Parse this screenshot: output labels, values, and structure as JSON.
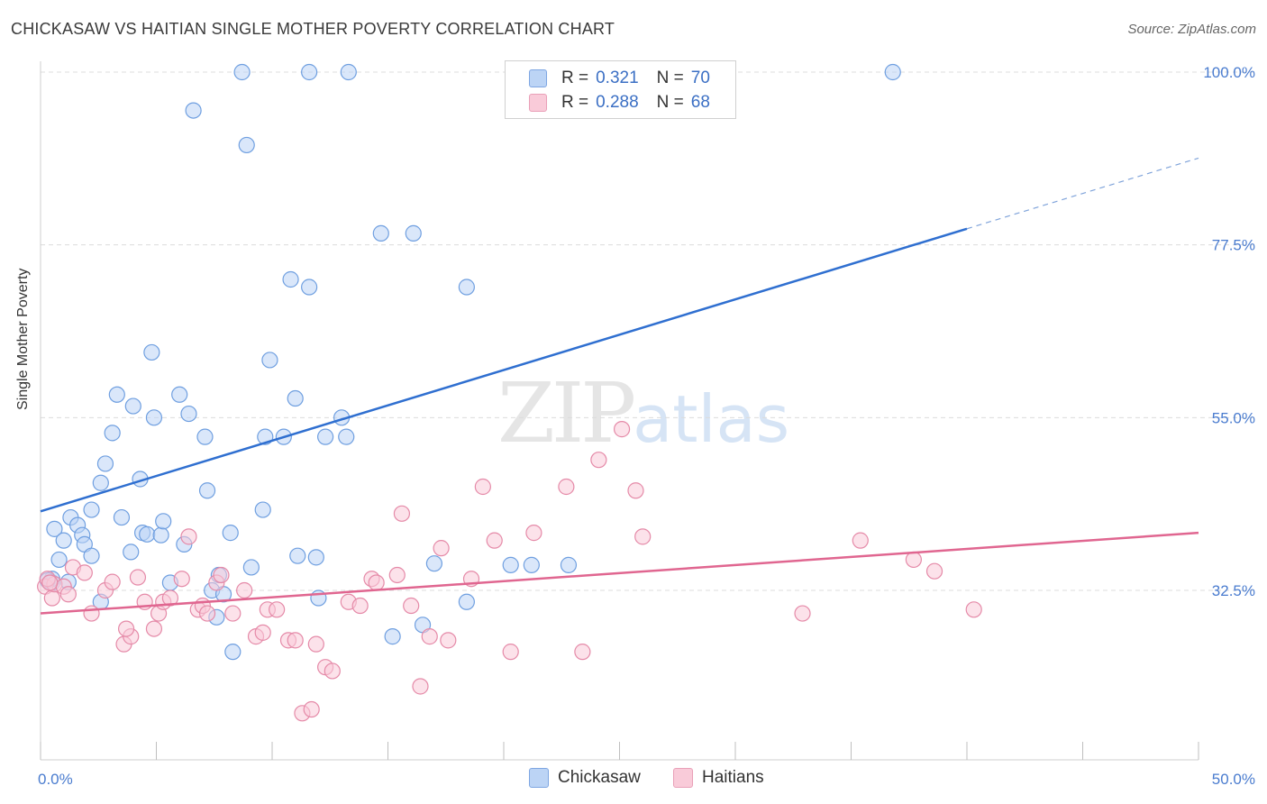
{
  "header": {
    "title": "CHICKASAW VS HAITIAN SINGLE MOTHER POVERTY CORRELATION CHART",
    "source": "Source: ZipAtlas.com"
  },
  "watermark": {
    "zip": "ZIP",
    "atlas": "atlas"
  },
  "legend": {
    "r_label": "R =",
    "n_label": "N =",
    "rows": [
      {
        "r": "0.321",
        "n": "70",
        "color": "#a9c8f0"
      },
      {
        "r": "0.288",
        "n": "68",
        "color": "#f6b8cc"
      }
    ]
  },
  "chart_data": {
    "type": "scatter",
    "title": "CHICKASAW VS HAITIAN SINGLE MOTHER POVERTY CORRELATION CHART",
    "xlabel": "",
    "ylabel": "Single Mother Poverty",
    "xlim": [
      0,
      50
    ],
    "ylim": [
      14,
      102
    ],
    "x_tick_labels": [
      "0.0%",
      "50.0%"
    ],
    "y_ticks": [
      32.5,
      55.0,
      77.5,
      100.0
    ],
    "y_tick_labels": [
      "32.5%",
      "55.0%",
      "77.5%",
      "100.0%"
    ],
    "grid": "horizontal dashed",
    "legend_position": "top-center",
    "series": [
      {
        "name": "Chickasaw",
        "color": "#6f9fe0",
        "fill": "#bcd4f5",
        "trend": {
          "x0": 0,
          "y0": 42.8,
          "x1": 40,
          "y1": 79.6,
          "dash_to_x": 50,
          "dash_to_y": 88.8
        },
        "points": [
          [
            0.5,
            33.5
          ],
          [
            0.8,
            36.5
          ],
          [
            0.6,
            40.5
          ],
          [
            1.0,
            39.0
          ],
          [
            1.2,
            33.6
          ],
          [
            1.3,
            42.0
          ],
          [
            1.6,
            41.0
          ],
          [
            1.8,
            39.7
          ],
          [
            1.9,
            38.5
          ],
          [
            2.2,
            37.0
          ],
          [
            2.2,
            43.0
          ],
          [
            2.6,
            46.5
          ],
          [
            2.6,
            31.0
          ],
          [
            2.8,
            49.0
          ],
          [
            3.1,
            53.0
          ],
          [
            3.3,
            58.0
          ],
          [
            3.5,
            42.0
          ],
          [
            3.9,
            37.5
          ],
          [
            4.0,
            56.5
          ],
          [
            4.3,
            47.0
          ],
          [
            4.4,
            40.0
          ],
          [
            4.6,
            39.8
          ],
          [
            4.8,
            63.5
          ],
          [
            4.9,
            55.0
          ],
          [
            5.2,
            39.7
          ],
          [
            5.3,
            41.5
          ],
          [
            5.6,
            33.5
          ],
          [
            6.0,
            58.0
          ],
          [
            6.2,
            38.5
          ],
          [
            6.4,
            55.5
          ],
          [
            7.1,
            52.5
          ],
          [
            7.2,
            45.5
          ],
          [
            7.4,
            32.5
          ],
          [
            7.6,
            29.0
          ],
          [
            7.7,
            34.5
          ],
          [
            7.9,
            32.0
          ],
          [
            8.2,
            40.0
          ],
          [
            8.3,
            24.5
          ],
          [
            8.7,
            100.0
          ],
          [
            8.9,
            90.5
          ],
          [
            9.1,
            35.5
          ],
          [
            9.6,
            43.0
          ],
          [
            9.7,
            52.5
          ],
          [
            9.9,
            62.5
          ],
          [
            10.5,
            52.5
          ],
          [
            10.8,
            73.0
          ],
          [
            11.0,
            57.5
          ],
          [
            11.1,
            37.0
          ],
          [
            11.6,
            72.0
          ],
          [
            11.9,
            36.8
          ],
          [
            12.0,
            31.5
          ],
          [
            12.3,
            52.5
          ],
          [
            13.0,
            55.0
          ],
          [
            13.2,
            52.5
          ],
          [
            13.3,
            100.0
          ],
          [
            11.6,
            100.0
          ],
          [
            14.7,
            79.0
          ],
          [
            15.2,
            26.5
          ],
          [
            16.1,
            79.0
          ],
          [
            16.5,
            28.0
          ],
          [
            17.0,
            36.0
          ],
          [
            18.4,
            31.0
          ],
          [
            18.4,
            72.0
          ],
          [
            20.3,
            35.8
          ],
          [
            21.2,
            35.8
          ],
          [
            22.8,
            35.8
          ],
          [
            6.6,
            95.0
          ],
          [
            36.8,
            100.0
          ],
          [
            0.5,
            34.0
          ],
          [
            0.3,
            33.8
          ]
        ]
      },
      {
        "name": "Haitians",
        "color": "#e58aa8",
        "fill": "#f9cbd9",
        "trend": {
          "x0": 0,
          "y0": 29.5,
          "x1": 50,
          "y1": 40.0
        },
        "points": [
          [
            0.2,
            33.0
          ],
          [
            0.5,
            31.5
          ],
          [
            0.6,
            33.3
          ],
          [
            1.0,
            33.0
          ],
          [
            1.2,
            32.0
          ],
          [
            1.4,
            35.5
          ],
          [
            1.9,
            34.8
          ],
          [
            2.2,
            29.5
          ],
          [
            2.8,
            32.5
          ],
          [
            3.1,
            33.6
          ],
          [
            3.6,
            25.5
          ],
          [
            3.9,
            26.5
          ],
          [
            4.2,
            34.2
          ],
          [
            4.5,
            31.0
          ],
          [
            4.9,
            27.5
          ],
          [
            5.1,
            29.5
          ],
          [
            5.3,
            31.0
          ],
          [
            5.6,
            31.5
          ],
          [
            6.1,
            34.0
          ],
          [
            6.4,
            39.5
          ],
          [
            6.8,
            30.0
          ],
          [
            7.0,
            30.5
          ],
          [
            7.2,
            29.5
          ],
          [
            7.6,
            33.5
          ],
          [
            7.8,
            34.5
          ],
          [
            8.3,
            29.5
          ],
          [
            8.8,
            32.5
          ],
          [
            9.3,
            26.5
          ],
          [
            9.6,
            27.0
          ],
          [
            9.8,
            30.0
          ],
          [
            10.2,
            30.0
          ],
          [
            10.7,
            26.0
          ],
          [
            11.0,
            26.0
          ],
          [
            11.3,
            16.5
          ],
          [
            11.7,
            17.0
          ],
          [
            11.9,
            25.5
          ],
          [
            12.3,
            22.5
          ],
          [
            12.6,
            22.0
          ],
          [
            13.3,
            31.0
          ],
          [
            13.8,
            30.5
          ],
          [
            14.3,
            34.0
          ],
          [
            14.5,
            33.5
          ],
          [
            15.4,
            34.5
          ],
          [
            15.6,
            42.5
          ],
          [
            16.0,
            30.5
          ],
          [
            16.4,
            20.0
          ],
          [
            16.8,
            26.5
          ],
          [
            17.3,
            38.0
          ],
          [
            17.6,
            26.0
          ],
          [
            18.6,
            34.0
          ],
          [
            19.1,
            46.0
          ],
          [
            19.6,
            39.0
          ],
          [
            20.3,
            24.5
          ],
          [
            21.3,
            40.0
          ],
          [
            22.7,
            46.0
          ],
          [
            23.4,
            24.5
          ],
          [
            24.1,
            49.5
          ],
          [
            25.1,
            53.5
          ],
          [
            25.7,
            45.5
          ],
          [
            26.0,
            39.5
          ],
          [
            32.9,
            29.5
          ],
          [
            35.4,
            39.0
          ],
          [
            37.7,
            36.5
          ],
          [
            38.6,
            35.0
          ],
          [
            40.3,
            30.0
          ],
          [
            3.7,
            27.5
          ],
          [
            0.3,
            34.0
          ],
          [
            0.4,
            33.5
          ]
        ]
      }
    ]
  },
  "bottom_legend": {
    "items": [
      {
        "label": "Chickasaw"
      },
      {
        "label": "Haitians"
      }
    ]
  }
}
